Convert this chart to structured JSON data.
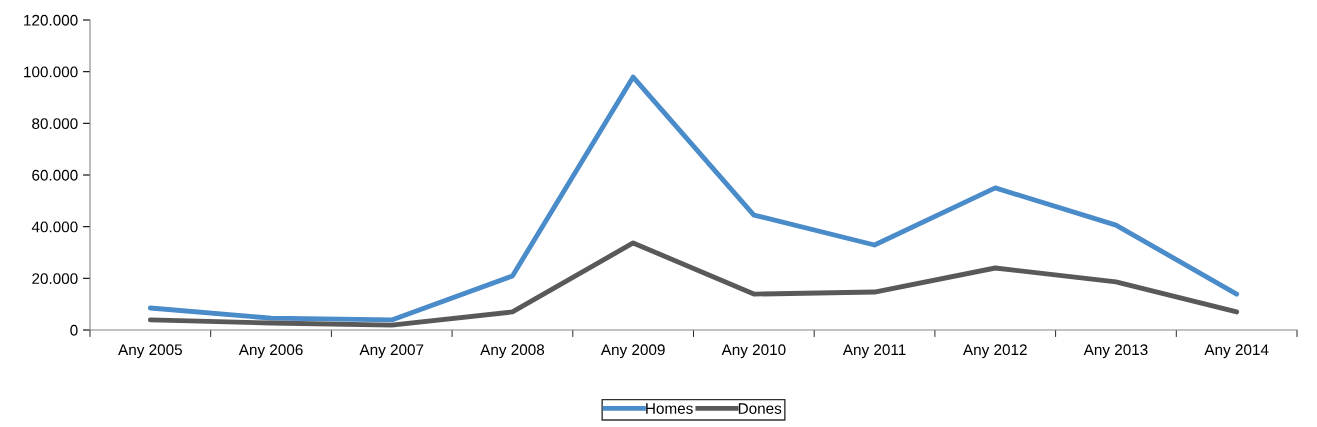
{
  "chart_data": {
    "type": "line",
    "categories": [
      "Any 2005",
      "Any 2006",
      "Any 2007",
      "Any 2008",
      "Any 2009",
      "Any 2010",
      "Any 2011",
      "Any 2012",
      "Any 2013",
      "Any 2014"
    ],
    "series": [
      {
        "name": "Homes",
        "color": "#4a8bc9",
        "values": [
          8500,
          4600,
          3900,
          20900,
          97900,
          44500,
          32900,
          55000,
          40600,
          13900
        ]
      },
      {
        "name": "Dones",
        "color": "#595959",
        "values": [
          3900,
          2700,
          1900,
          7000,
          33700,
          13900,
          14700,
          24000,
          18600,
          7000
        ]
      }
    ],
    "ylim": [
      0,
      120000
    ],
    "yticks": [
      0,
      {
        "value": 20000,
        "label": "20.000"
      },
      {
        "value": 40000,
        "label": "40.000"
      },
      {
        "value": 60000,
        "label": "60.000"
      },
      {
        "value": 80000,
        "label": "80.000"
      },
      {
        "value": 100000,
        "label": "100.000"
      },
      {
        "value": 120000,
        "label": "120.000"
      }
    ],
    "grid": false,
    "legend": "bottom",
    "marker": "none",
    "line_style": "solid"
  }
}
